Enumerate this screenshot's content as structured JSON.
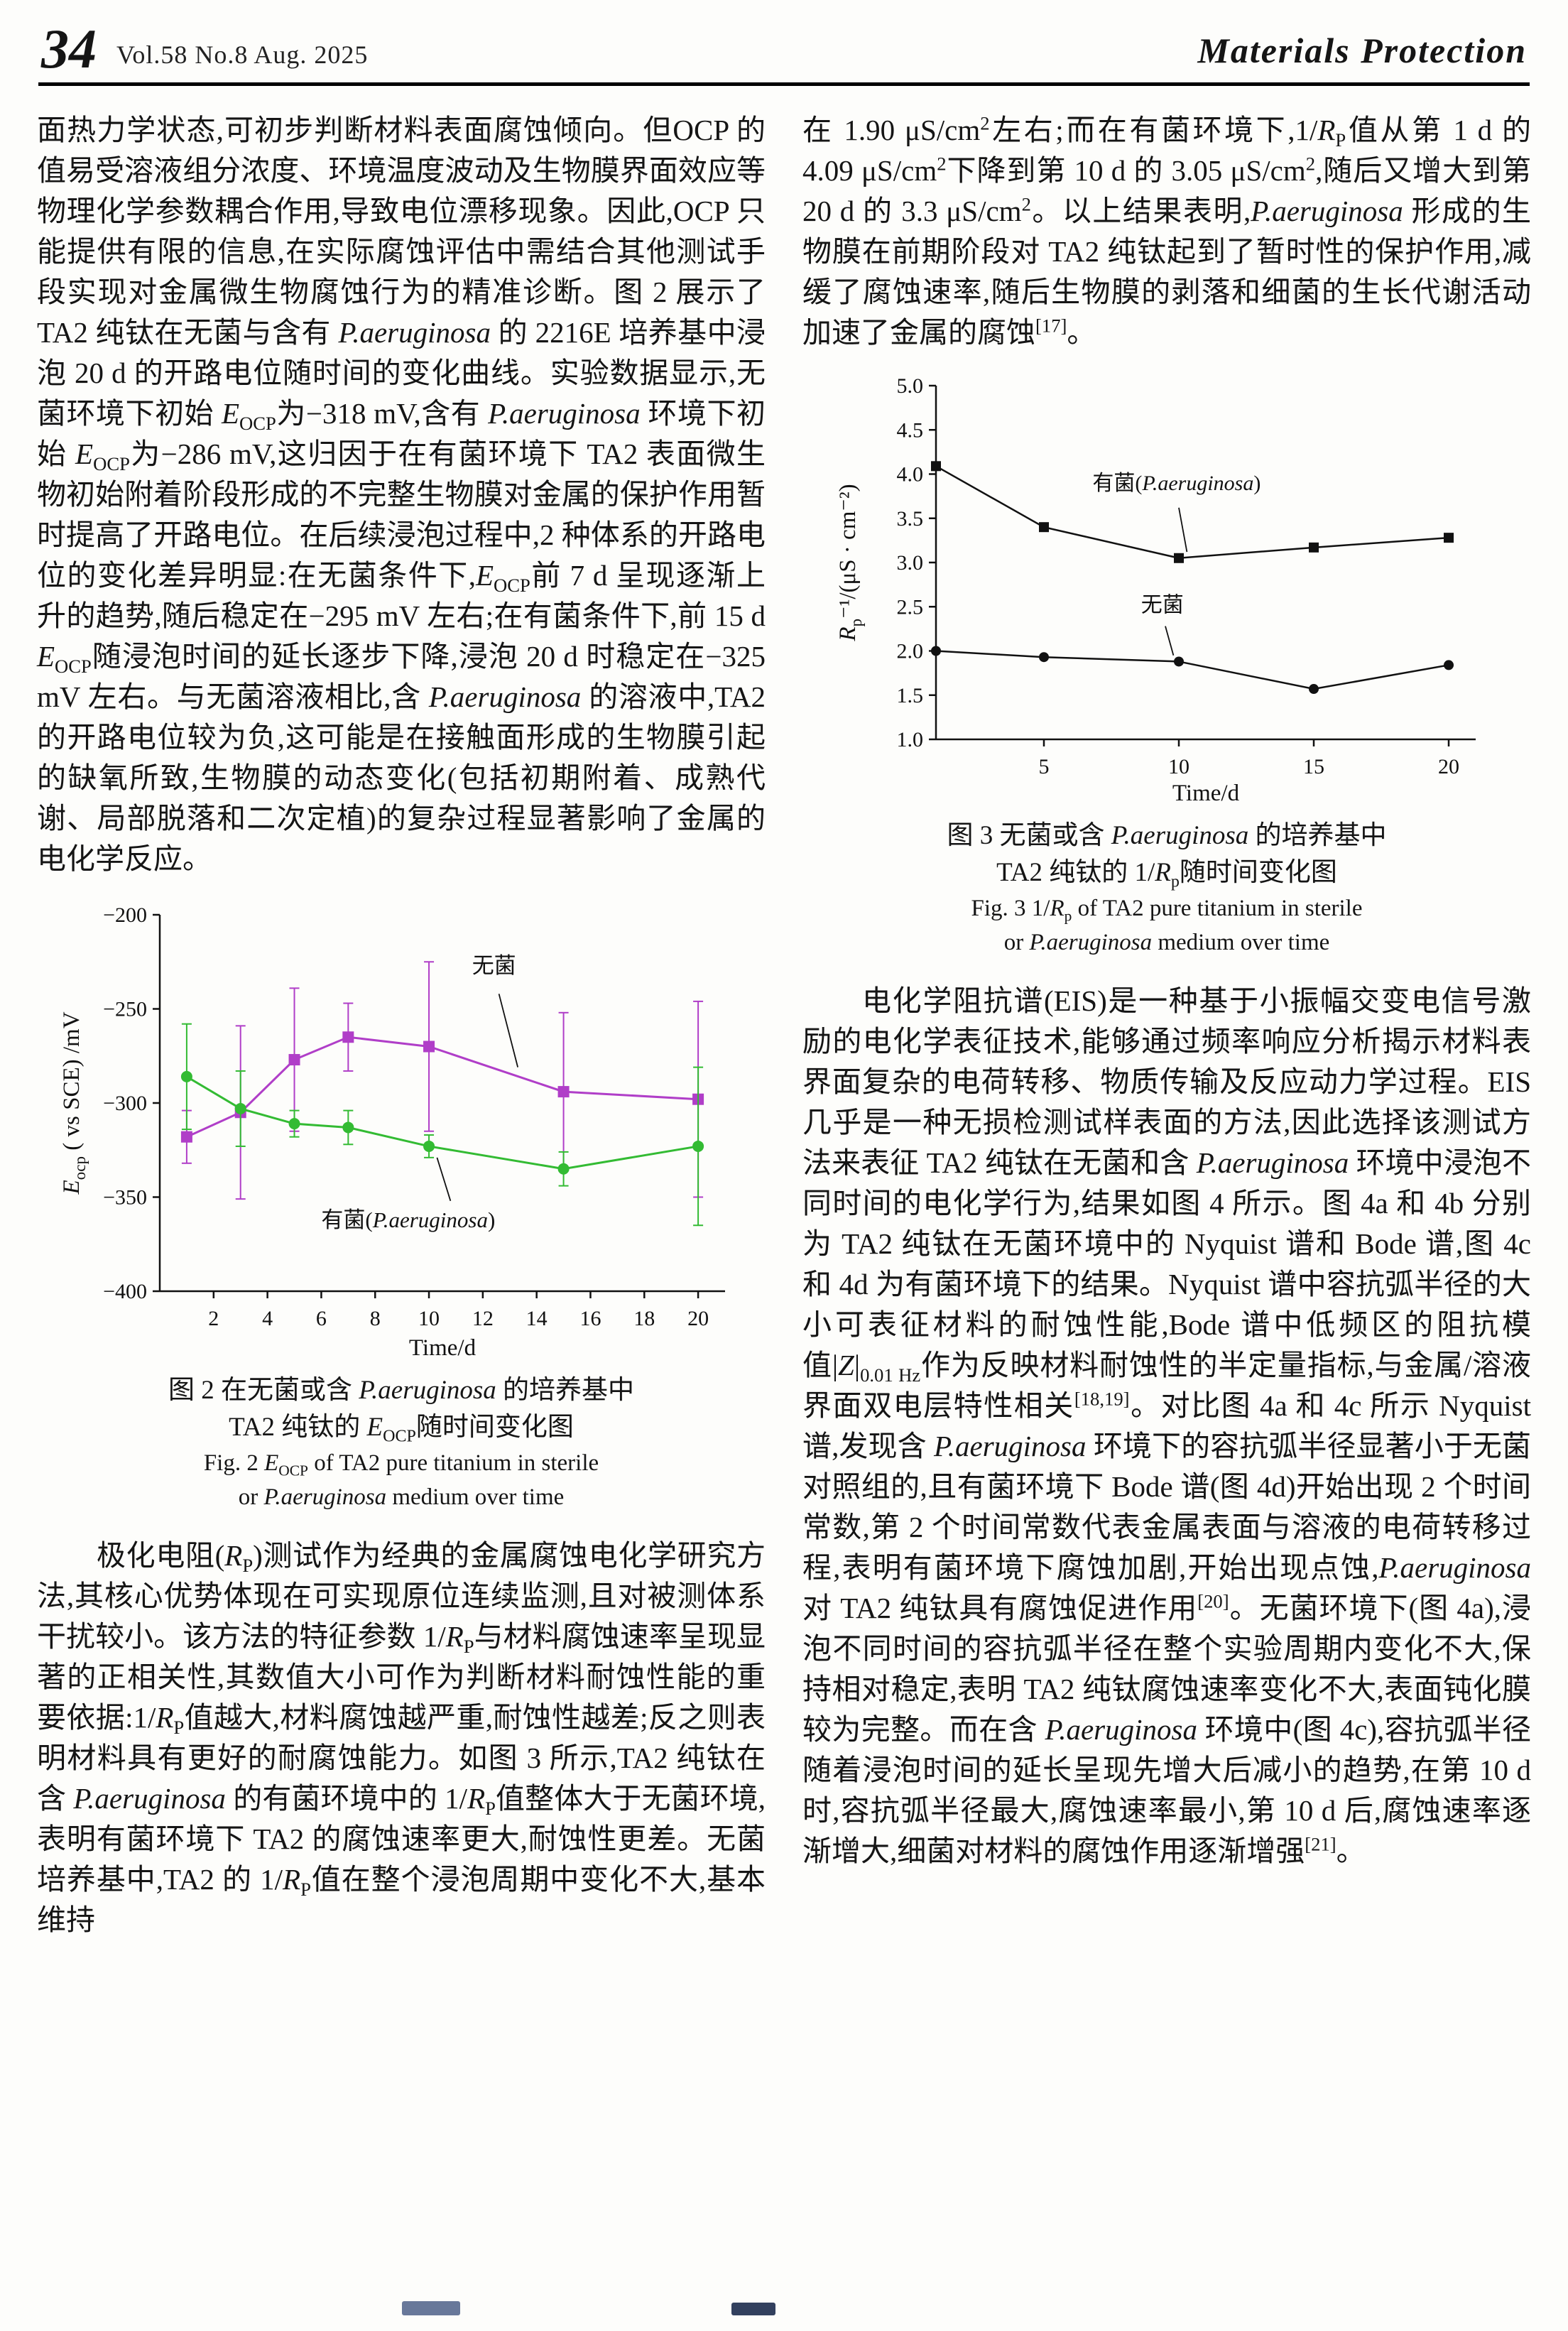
{
  "header": {
    "page_number": "34",
    "issue_info": "Vol.58 No.8 Aug. 2025",
    "journal_name": "Materials Protection"
  },
  "left": {
    "para1": "面热力学状态,可初步判断材料表面腐蚀倾向。但OCP 的值易受溶液组分浓度、环境温度波动及生物膜界面效应等物理化学参数耦合作用,导致电位漂移现象。因此,OCP 只能提供有限的信息,在实际腐蚀评估中需结合其他测试手段实现对金属微生物腐蚀行为的精准诊断。图 2 展示了 TA2 纯钛在无菌与含有 *P.aeruginosa* 的 2216E 培养基中浸泡 20 d 的开路电位随时间的变化曲线。实验数据显示,无菌环境下初始 *E*~OCP~为−318 mV,含有 *P.aeruginosa* 环境下初始 *E*~OCP~为−286 mV,这归因于在有菌环境下 TA2 表面微生物初始附着阶段形成的不完整生物膜对金属的保护作用暂时提高了开路电位。在后续浸泡过程中,2 种体系的开路电位的变化差异明显:在无菌条件下,*E*~OCP~前 7 d 呈现逐渐上升的趋势,随后稳定在−295 mV 左右;在有菌条件下,前 15 d *E*~OCP~随浸泡时间的延长逐步下降,浸泡 20 d 时稳定在−325 mV 左右。与无菌溶液相比,含 *P.aeruginosa* 的溶液中,TA2 的开路电位较为负,这可能是在接触面形成的生物膜引起的缺氧所致,生物膜的动态变化(包括初期附着、成熟代谢、局部脱落和二次定植)的复杂过程显著影响了金属的电化学反应。",
    "para2": "极化电阻(*R*~P~)测试作为经典的金属腐蚀电化学研究方法,其核心优势体现在可实现原位连续监测,且对被测体系干扰较小。该方法的特征参数 1/*R*~P~与材料腐蚀速率呈现显著的正相关性,其数值大小可作为判断材料耐蚀性能的重要依据:1/*R*~P~值越大,材料腐蚀越严重,耐蚀性越差;反之则表明材料具有更好的耐腐蚀能力。如图 3 所示,TA2 纯钛在含 *P.aeruginosa* 的有菌环境中的 1/*R*~P~值整体大于无菌环境,表明有菌环境下 TA2 的腐蚀速率更大,耐蚀性更差。无菌培养基中,TA2 的 1/*R*~P~值在整个浸泡周期中变化不大,基本维持",
    "fig2_cap_cn1": "图 2 在无菌或含 *P.aeruginosa* 的培养基中",
    "fig2_cap_cn2": "TA2 纯钛的 *E*~OCP~随时间变化图",
    "fig2_cap_en1": "Fig. 2 *E*~OCP~ of TA2 pure titanium in sterile",
    "fig2_cap_en2": "or *P.aeruginosa* medium over time"
  },
  "right": {
    "para1": "在 1.90 μS/cm^2^左右;而在有菌环境下,1/*R*~P~值从第 1 d 的 4.09 μS/cm^2^下降到第 10 d 的 3.05 μS/cm^2^,随后又增大到第 20 d 的 3.3 μS/cm^2^。以上结果表明,*P.aeruginosa* 形成的生物膜在前期阶段对 TA2 纯钛起到了暂时性的保护作用,减缓了腐蚀速率,随后生物膜的剥落和细菌的生长代谢活动加速了金属的腐蚀^[17]^。",
    "para2": "电化学阻抗谱(EIS)是一种基于小振幅交变电信号激励的电化学表征技术,能够通过频率响应分析揭示材料表界面复杂的电荷转移、物质传输及反应动力学过程。EIS 几乎是一种无损检测试样表面的方法,因此选择该测试方法来表征 TA2 纯钛在无菌和含 *P.aeruginosa* 环境中浸泡不同时间的电化学行为,结果如图 4 所示。图 4a 和 4b 分别为 TA2 纯钛在无菌环境中的 Nyquist 谱和 Bode 谱,图 4c 和 4d 为有菌环境下的结果。Nyquist 谱中容抗弧半径的大小可表征材料的耐蚀性能,Bode 谱中低频区的阻抗模值|*Z*|~0.01 Hz~作为反映材料耐蚀性的半定量指标,与金属/溶液界面双电层特性相关^[18,19]^。对比图 4a 和 4c 所示 Nyquist 谱,发现含 *P.aeruginosa* 环境下的容抗弧半径显著小于无菌对照组的,且有菌环境下 Bode 谱(图 4d)开始出现 2 个时间常数,第 2 个时间常数代表金属表面与溶液的电荷转移过程,表明有菌环境下腐蚀加剧,开始出现点蚀,*P.aeruginosa* 对 TA2 纯钛具有腐蚀促进作用^[20]^。无菌环境下(图 4a),浸泡不同时间的容抗弧半径在整个实验周期内变化不大,保持相对稳定,表明 TA2 纯钛腐蚀速率变化不大,表面钝化膜较为完整。而在含 *P.aeruginosa* 环境中(图 4c),容抗弧半径随着浸泡时间的延长呈现先增大后减小的趋势,在第 10 d 时,容抗弧半径最大,腐蚀速率最小,第 10 d 后,腐蚀速率逐渐增大,细菌对材料的腐蚀作用逐渐增强^[21]^。",
    "fig3_cap_cn1": "图 3 无菌或含 *P.aeruginosa* 的培养基中",
    "fig3_cap_cn2": "TA2 纯钛的 1/*R*~p~随时间变化图",
    "fig3_cap_en1": "Fig. 3 1/*R*~p~ of TA2 pure titanium in sterile",
    "fig3_cap_en2": "or *P.aeruginosa* medium over time"
  },
  "chart_data": [
    {
      "type": "line",
      "title": "",
      "xlabel": "Time/d",
      "ylabel": "*E*~ocp~ ( vs SCE) /mV",
      "xlim": [
        0,
        21
      ],
      "ylim": [
        -400,
        -200
      ],
      "xticks": [
        2,
        4,
        6,
        8,
        10,
        12,
        14,
        16,
        18,
        20
      ],
      "yticks": [
        -400,
        -350,
        -300,
        -250,
        -200
      ],
      "yticklabels": [
        "−400",
        "−350",
        "−300",
        "−250",
        "−200"
      ],
      "grid": false,
      "x": [
        1,
        3,
        5,
        7,
        10,
        15,
        20
      ],
      "series": [
        {
          "name": "无菌",
          "color": "#b03ec8",
          "marker": "square",
          "values": [
            -318,
            -305,
            -277,
            -265,
            -270,
            -294,
            -298
          ],
          "errors": [
            14,
            46,
            38,
            18,
            45,
            42,
            52
          ]
        },
        {
          "name": "有菌(P.aeruginosa)",
          "color": "#33bb33",
          "marker": "circle",
          "values": [
            -286,
            -303,
            -311,
            -313,
            -323,
            -335,
            -323
          ],
          "errors": [
            28,
            20,
            7,
            9,
            6,
            9,
            42
          ]
        }
      ],
      "annotations": [
        {
          "text": "无菌",
          "x": 11.6,
          "y": -231,
          "anchor": "start",
          "line": [
            12.6,
            -242,
            13.3,
            -281
          ]
        },
        {
          "text": "有菌(*P.aeruginosa*)",
          "x": 6.0,
          "y": -366,
          "anchor": "start",
          "line": [
            10.8,
            -352,
            10.3,
            -329
          ]
        }
      ]
    },
    {
      "type": "line",
      "title": "",
      "xlabel": "Time/d",
      "ylabel": "*R*~p~⁻¹/(μS · cm⁻²)",
      "xlim": [
        1,
        21
      ],
      "ylim": [
        1.0,
        5.0
      ],
      "xticks": [
        5,
        10,
        15,
        20
      ],
      "yticks": [
        1.0,
        1.5,
        2.0,
        2.5,
        3.0,
        3.5,
        4.0,
        4.5,
        5.0
      ],
      "yticklabels": [
        "1.0",
        "1.5",
        "2.0",
        "2.5",
        "3.0",
        "3.5",
        "4.0",
        "4.5",
        "5.0"
      ],
      "grid": false,
      "x": [
        1,
        5,
        10,
        15,
        20
      ],
      "series": [
        {
          "name": "有菌(P.aeruginosa)",
          "color": "#111111",
          "marker": "square",
          "values": [
            4.09,
            3.4,
            3.05,
            3.17,
            3.28
          ]
        },
        {
          "name": "无菌",
          "color": "#111111",
          "marker": "circle",
          "values": [
            2.0,
            1.93,
            1.88,
            1.57,
            1.84
          ]
        }
      ],
      "annotations": [
        {
          "text": "有菌(*P.aeruginosa*)",
          "x": 6.8,
          "y": 3.82,
          "anchor": "start",
          "line": [
            10.0,
            3.62,
            10.3,
            3.12
          ]
        },
        {
          "text": "无菌",
          "x": 8.6,
          "y": 2.44,
          "anchor": "start",
          "line": [
            9.5,
            2.28,
            9.8,
            1.95
          ]
        }
      ]
    }
  ]
}
